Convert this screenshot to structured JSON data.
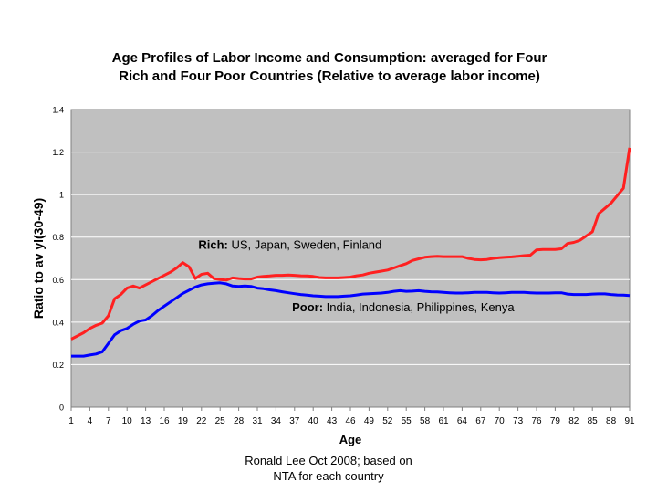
{
  "chart_data": {
    "type": "line",
    "title_line1": "Age Profiles of Labor Income and Consumption: averaged for Four",
    "title_line2": "Rich and Four Poor Countries (Relative to average labor income)",
    "xlabel": "Age",
    "ylabel": "Ratio to av yl(30-49)",
    "xlim": [
      1,
      91
    ],
    "ylim": [
      0,
      1.4
    ],
    "x_ticks": [
      1,
      4,
      7,
      10,
      13,
      16,
      19,
      22,
      25,
      28,
      31,
      34,
      37,
      40,
      43,
      46,
      49,
      52,
      55,
      58,
      61,
      64,
      67,
      70,
      73,
      76,
      79,
      82,
      85,
      88,
      91
    ],
    "y_ticks": [
      {
        "value": 0,
        "label": "0"
      },
      {
        "value": 0.2,
        "label": "0.2"
      },
      {
        "value": 0.4,
        "label": "0.4"
      },
      {
        "value": 0.6,
        "label": "0.6"
      },
      {
        "value": 0.8,
        "label": "0.8"
      },
      {
        "value": 1.0,
        "label": "1"
      },
      {
        "value": 1.2,
        "label": "1.2"
      },
      {
        "value": 1.4,
        "label": "1.4"
      }
    ],
    "grid": "horizontal",
    "background": "#c0c0c0",
    "series": [
      {
        "label_bold": "Rich:",
        "label_rest": " US, Japan, Sweden, Finland",
        "color": "#ff2020",
        "label_at": [
          21.5,
          0.745
        ],
        "points": [
          [
            1,
            0.32
          ],
          [
            3,
            0.35
          ],
          [
            4,
            0.37
          ],
          [
            5,
            0.385
          ],
          [
            6,
            0.395
          ],
          [
            7,
            0.43
          ],
          [
            8,
            0.51
          ],
          [
            9,
            0.53
          ],
          [
            10,
            0.56
          ],
          [
            11,
            0.57
          ],
          [
            12,
            0.56
          ],
          [
            13,
            0.575
          ],
          [
            14,
            0.59
          ],
          [
            15,
            0.605
          ],
          [
            16,
            0.62
          ],
          [
            17,
            0.635
          ],
          [
            18,
            0.655
          ],
          [
            19,
            0.68
          ],
          [
            20,
            0.66
          ],
          [
            21,
            0.605
          ],
          [
            22,
            0.625
          ],
          [
            23,
            0.63
          ],
          [
            24,
            0.605
          ],
          [
            25,
            0.6
          ],
          [
            26,
            0.598
          ],
          [
            27,
            0.608
          ],
          [
            28,
            0.605
          ],
          [
            29,
            0.603
          ],
          [
            30,
            0.603
          ],
          [
            31,
            0.612
          ],
          [
            32,
            0.615
          ],
          [
            33,
            0.617
          ],
          [
            34,
            0.62
          ],
          [
            35,
            0.62
          ],
          [
            36,
            0.622
          ],
          [
            37,
            0.62
          ],
          [
            38,
            0.618
          ],
          [
            39,
            0.617
          ],
          [
            40,
            0.615
          ],
          [
            41,
            0.61
          ],
          [
            42,
            0.608
          ],
          [
            43,
            0.608
          ],
          [
            44,
            0.608
          ],
          [
            45,
            0.61
          ],
          [
            46,
            0.612
          ],
          [
            47,
            0.618
          ],
          [
            48,
            0.622
          ],
          [
            49,
            0.63
          ],
          [
            50,
            0.635
          ],
          [
            51,
            0.64
          ],
          [
            52,
            0.645
          ],
          [
            53,
            0.655
          ],
          [
            54,
            0.665
          ],
          [
            55,
            0.675
          ],
          [
            56,
            0.69
          ],
          [
            57,
            0.698
          ],
          [
            58,
            0.705
          ],
          [
            59,
            0.708
          ],
          [
            60,
            0.71
          ],
          [
            61,
            0.708
          ],
          [
            62,
            0.708
          ],
          [
            63,
            0.708
          ],
          [
            64,
            0.708
          ],
          [
            65,
            0.7
          ],
          [
            66,
            0.695
          ],
          [
            67,
            0.693
          ],
          [
            68,
            0.695
          ],
          [
            69,
            0.7
          ],
          [
            70,
            0.703
          ],
          [
            71,
            0.705
          ],
          [
            72,
            0.707
          ],
          [
            73,
            0.71
          ],
          [
            74,
            0.713
          ],
          [
            75,
            0.715
          ],
          [
            76,
            0.74
          ],
          [
            77,
            0.742
          ],
          [
            78,
            0.742
          ],
          [
            79,
            0.742
          ],
          [
            80,
            0.745
          ],
          [
            81,
            0.77
          ],
          [
            82,
            0.775
          ],
          [
            83,
            0.785
          ],
          [
            84,
            0.805
          ],
          [
            85,
            0.825
          ],
          [
            86,
            0.91
          ],
          [
            87,
            0.935
          ],
          [
            88,
            0.96
          ],
          [
            89,
            0.995
          ],
          [
            90,
            1.03
          ],
          [
            91,
            1.22
          ]
        ]
      },
      {
        "label_bold": "Poor:",
        "label_rest": " India, Indonesia, Philippines, Kenya",
        "color": "#0000ff",
        "label_at": [
          36.6,
          0.45
        ],
        "points": [
          [
            1,
            0.24
          ],
          [
            3,
            0.24
          ],
          [
            4,
            0.245
          ],
          [
            5,
            0.25
          ],
          [
            6,
            0.26
          ],
          [
            7,
            0.3
          ],
          [
            8,
            0.34
          ],
          [
            9,
            0.36
          ],
          [
            10,
            0.37
          ],
          [
            11,
            0.39
          ],
          [
            12,
            0.405
          ],
          [
            13,
            0.41
          ],
          [
            14,
            0.43
          ],
          [
            15,
            0.455
          ],
          [
            16,
            0.475
          ],
          [
            17,
            0.495
          ],
          [
            18,
            0.515
          ],
          [
            19,
            0.535
          ],
          [
            20,
            0.55
          ],
          [
            21,
            0.565
          ],
          [
            22,
            0.575
          ],
          [
            23,
            0.58
          ],
          [
            24,
            0.583
          ],
          [
            25,
            0.585
          ],
          [
            26,
            0.58
          ],
          [
            27,
            0.57
          ],
          [
            28,
            0.568
          ],
          [
            29,
            0.57
          ],
          [
            30,
            0.568
          ],
          [
            31,
            0.56
          ],
          [
            32,
            0.557
          ],
          [
            33,
            0.552
          ],
          [
            34,
            0.548
          ],
          [
            35,
            0.543
          ],
          [
            36,
            0.538
          ],
          [
            37,
            0.534
          ],
          [
            38,
            0.53
          ],
          [
            39,
            0.527
          ],
          [
            40,
            0.524
          ],
          [
            41,
            0.522
          ],
          [
            42,
            0.52
          ],
          [
            43,
            0.52
          ],
          [
            44,
            0.52
          ],
          [
            45,
            0.522
          ],
          [
            46,
            0.524
          ],
          [
            47,
            0.528
          ],
          [
            48,
            0.532
          ],
          [
            49,
            0.534
          ],
          [
            50,
            0.535
          ],
          [
            51,
            0.537
          ],
          [
            52,
            0.54
          ],
          [
            53,
            0.545
          ],
          [
            54,
            0.548
          ],
          [
            55,
            0.545
          ],
          [
            56,
            0.546
          ],
          [
            57,
            0.548
          ],
          [
            58,
            0.545
          ],
          [
            59,
            0.543
          ],
          [
            60,
            0.542
          ],
          [
            61,
            0.54
          ],
          [
            62,
            0.538
          ],
          [
            63,
            0.537
          ],
          [
            64,
            0.537
          ],
          [
            65,
            0.538
          ],
          [
            66,
            0.54
          ],
          [
            67,
            0.54
          ],
          [
            68,
            0.54
          ],
          [
            69,
            0.538
          ],
          [
            70,
            0.537
          ],
          [
            71,
            0.538
          ],
          [
            72,
            0.54
          ],
          [
            73,
            0.54
          ],
          [
            74,
            0.54
          ],
          [
            75,
            0.538
          ],
          [
            76,
            0.537
          ],
          [
            77,
            0.537
          ],
          [
            78,
            0.537
          ],
          [
            79,
            0.538
          ],
          [
            80,
            0.538
          ],
          [
            81,
            0.532
          ],
          [
            82,
            0.53
          ],
          [
            83,
            0.53
          ],
          [
            84,
            0.53
          ],
          [
            85,
            0.532
          ],
          [
            86,
            0.533
          ],
          [
            87,
            0.533
          ],
          [
            88,
            0.53
          ],
          [
            89,
            0.528
          ],
          [
            90,
            0.527
          ],
          [
            91,
            0.525
          ]
        ]
      }
    ]
  },
  "caption_line1": "Ronald Lee Oct 2008; based on",
  "caption_line2": "NTA for each country"
}
